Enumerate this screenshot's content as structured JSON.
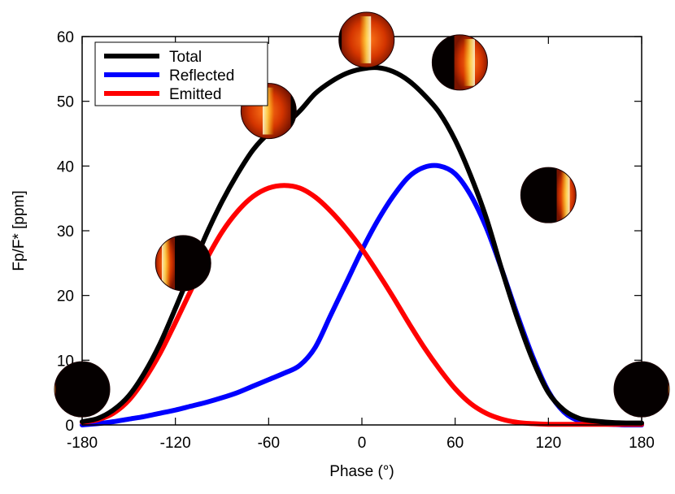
{
  "chart_data": {
    "type": "line",
    "xlabel": "Phase (°)",
    "ylabel": "Fp/F* [ppm]",
    "xlim": [
      -180,
      180
    ],
    "ylim": [
      0,
      60
    ],
    "xticks": [
      -180,
      -120,
      -60,
      0,
      60,
      120,
      180
    ],
    "yticks": [
      0,
      10,
      20,
      30,
      40,
      50,
      60
    ],
    "grid": false,
    "legend_position": "top-left",
    "series": [
      {
        "name": "Total",
        "color": "#000000",
        "x": [
          -180,
          -170,
          -160,
          -150,
          -140,
          -130,
          -120,
          -110,
          -100,
          -90,
          -80,
          -70,
          -60,
          -50,
          -40,
          -30,
          -20,
          -10,
          0,
          10,
          20,
          30,
          40,
          50,
          60,
          70,
          80,
          90,
          100,
          110,
          120,
          130,
          140,
          150,
          160,
          170,
          180
        ],
        "y": [
          0.5,
          1.0,
          2.3,
          4.5,
          8.0,
          12.5,
          18.0,
          23.8,
          29.5,
          34.5,
          38.8,
          42.5,
          45.0,
          46.3,
          48.5,
          51.2,
          53.0,
          54.3,
          55.0,
          55.2,
          54.6,
          53.2,
          51.0,
          48.2,
          44.0,
          38.5,
          32.0,
          24.0,
          16.5,
          10.0,
          5.0,
          2.3,
          1.0,
          0.6,
          0.4,
          0.3,
          0.3
        ]
      },
      {
        "name": "Reflected",
        "color": "#0000ff",
        "x": [
          -180,
          -170,
          -160,
          -150,
          -140,
          -130,
          -120,
          -110,
          -100,
          -90,
          -80,
          -70,
          -60,
          -50,
          -40,
          -30,
          -20,
          -10,
          0,
          10,
          20,
          30,
          40,
          50,
          60,
          70,
          80,
          90,
          100,
          110,
          120,
          130,
          140,
          150,
          160,
          170,
          180
        ],
        "y": [
          0.0,
          0.2,
          0.5,
          0.9,
          1.3,
          1.8,
          2.3,
          2.9,
          3.5,
          4.2,
          5.0,
          6.0,
          7.0,
          8.0,
          9.2,
          12.0,
          17.0,
          22.0,
          27.0,
          31.5,
          35.3,
          38.3,
          39.8,
          40.0,
          38.8,
          35.5,
          30.5,
          24.0,
          17.0,
          10.5,
          5.2,
          2.0,
          0.6,
          0.2,
          0.1,
          0.0,
          0.0
        ]
      },
      {
        "name": "Emitted",
        "color": "#ff0000",
        "x": [
          -180,
          -170,
          -160,
          -150,
          -140,
          -130,
          -120,
          -110,
          -100,
          -90,
          -80,
          -70,
          -60,
          -50,
          -40,
          -30,
          -20,
          -10,
          0,
          10,
          20,
          30,
          40,
          50,
          60,
          70,
          80,
          90,
          100,
          110,
          120,
          130,
          140,
          150,
          160,
          170,
          180
        ],
        "y": [
          0.4,
          0.8,
          1.8,
          3.8,
          7.0,
          11.0,
          15.8,
          20.8,
          25.6,
          29.8,
          33.0,
          35.3,
          36.6,
          37.0,
          36.6,
          35.2,
          33.0,
          30.3,
          27.2,
          23.6,
          19.8,
          15.8,
          12.0,
          8.6,
          5.6,
          3.3,
          1.8,
          0.9,
          0.4,
          0.2,
          0.1,
          0.1,
          0.1,
          0.1,
          0.1,
          0.1,
          0.1
        ]
      }
    ],
    "planet_icons": [
      {
        "phase": -180,
        "flux": 5.5,
        "lit": 0.02,
        "glow": "left"
      },
      {
        "phase": -115,
        "flux": 25.0,
        "lit": 0.35,
        "glow": "left"
      },
      {
        "phase": -60,
        "flux": 48.5,
        "lit": 0.9,
        "glow": "left"
      },
      {
        "phase": 3,
        "flux": 59.5,
        "lit": 0.95,
        "glow": "right"
      },
      {
        "phase": 63,
        "flux": 56.0,
        "lit": 0.6,
        "glow": "right"
      },
      {
        "phase": 120,
        "flux": 35.5,
        "lit": 0.35,
        "glow": "right"
      },
      {
        "phase": 180,
        "flux": 5.5,
        "lit": 0.02,
        "glow": "right"
      }
    ]
  }
}
